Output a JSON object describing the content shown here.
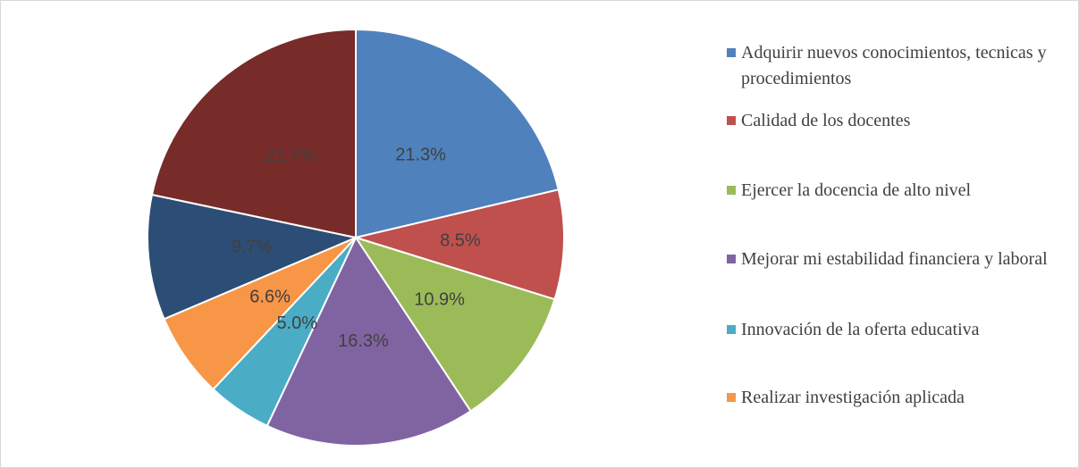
{
  "chart_data": {
    "type": "pie",
    "categories": [
      "Adquirir nuevos conocimientos, tecnicas y procedimientos",
      "Calidad de los docentes",
      "Ejercer la docencia de alto nivel",
      "Mejorar mi estabilidad financiera y laboral",
      "Innovación de la oferta educativa",
      "Realizar investigación aplicada",
      null,
      null
    ],
    "values": [
      21.3,
      8.5,
      10.9,
      16.3,
      5.0,
      6.6,
      9.7,
      21.7
    ],
    "value_labels": [
      "21.3%",
      "8.5%",
      "10.9%",
      "16.3%",
      "5.0%",
      "6.6%",
      "9.7%",
      "21.7%"
    ],
    "colors": [
      "#4f81bd",
      "#c0504d",
      "#9bbb59",
      "#8064a2",
      "#4bacc6",
      "#f79646",
      "#2c4d75",
      "#772c2a"
    ]
  }
}
